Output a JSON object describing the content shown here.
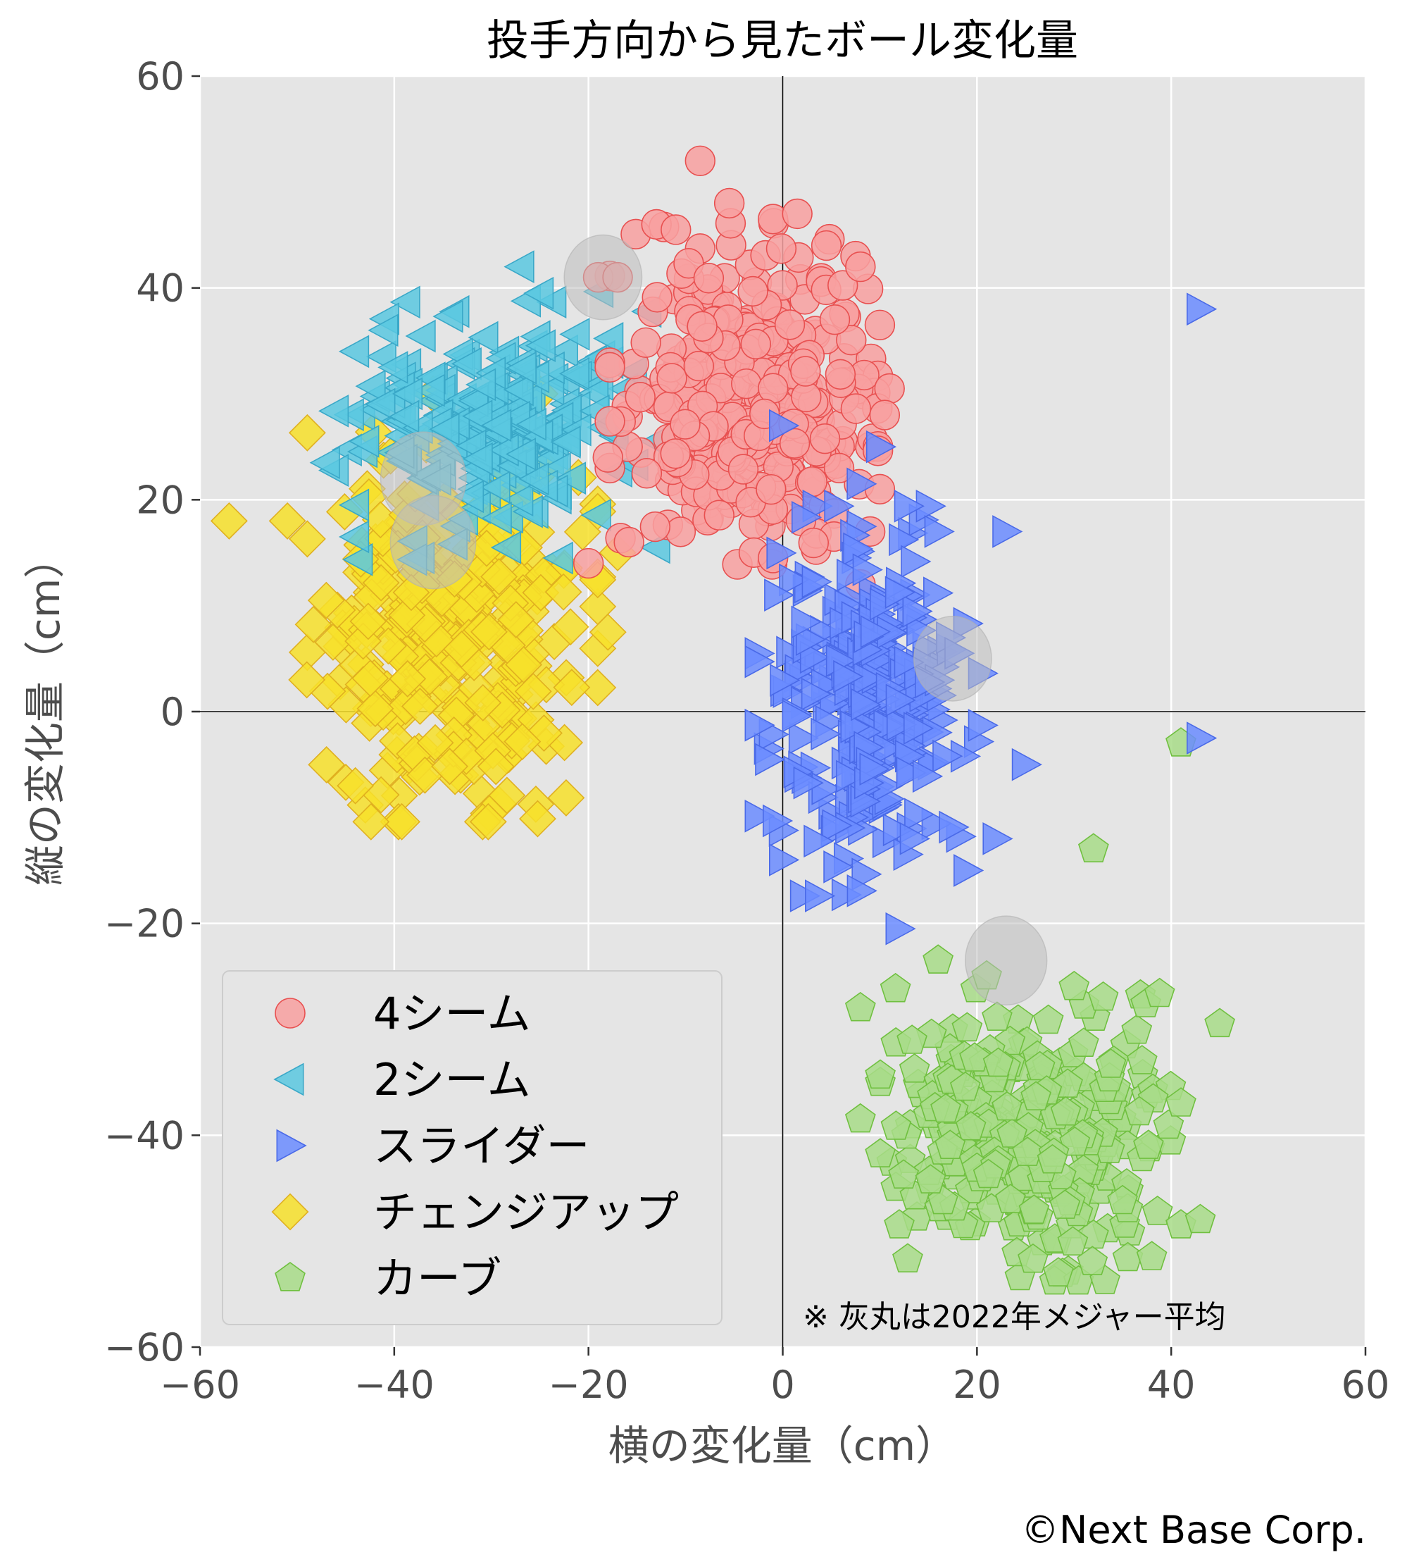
{
  "chart_data": {
    "type": "scatter",
    "title": "投手方向から見たボール変化量",
    "xlabel": "横の変化量（cm）",
    "ylabel": "縦の変化量（cm）",
    "xlim": [
      -60,
      60
    ],
    "ylim": [
      -60,
      60
    ],
    "xticks": [
      -60,
      -40,
      -20,
      0,
      20,
      40,
      60
    ],
    "yticks": [
      -60,
      -40,
      -20,
      0,
      20,
      40,
      60
    ],
    "xtick_labels": [
      "−60",
      "−40",
      "−20",
      "0",
      "20",
      "40",
      "60"
    ],
    "ytick_labels": [
      "−60",
      "−40",
      "−20",
      "0",
      "20",
      "40",
      "60"
    ],
    "grid": true,
    "reference_lines": {
      "x": 0,
      "y": 0
    },
    "legend_position": "lower-left",
    "note": "※ 灰丸は2022年メジャー平均",
    "credit": "©Next Base Corp.",
    "series": [
      {
        "name": "4シーム",
        "marker": "circle",
        "color": "#f8a0a0",
        "edge": "#e85050",
        "center": [
          -4,
          30
        ],
        "spread": [
          6,
          7
        ],
        "count": 360,
        "outliers": [
          [
            -8.5,
            52
          ],
          [
            -5.5,
            48
          ],
          [
            -1,
            46.5
          ],
          [
            1.5,
            47
          ],
          [
            4.5,
            44
          ],
          [
            -13,
            46
          ],
          [
            -11,
            45.5
          ],
          [
            7.5,
            43
          ],
          [
            8,
            42
          ],
          [
            10,
            36.5
          ],
          [
            11,
            30.5
          ],
          [
            10.5,
            28
          ],
          [
            10,
            21
          ],
          [
            9,
            17
          ],
          [
            8,
            12
          ],
          [
            -1,
            14.5
          ],
          [
            -20,
            14
          ],
          [
            -19,
            41
          ],
          [
            -17,
            41
          ],
          [
            -14,
            22.5
          ],
          [
            -18,
            24
          ]
        ]
      },
      {
        "name": "2シーム",
        "marker": "triangle-left",
        "color": "#5bc8e0",
        "edge": "#3aa8c8",
        "center": [
          -30,
          27
        ],
        "spread": [
          7,
          5.5
        ],
        "count": 230,
        "outliers": [
          [
            -27,
            42
          ],
          [
            -25,
            39.5
          ],
          [
            -41,
            36
          ],
          [
            -44,
            34
          ],
          [
            -40,
            32.5
          ],
          [
            -47,
            23.5
          ],
          [
            -44,
            19.5
          ],
          [
            -44,
            16.5
          ],
          [
            -23,
            14.5
          ],
          [
            -13,
            15.5
          ],
          [
            -13,
            25.5
          ]
        ]
      },
      {
        "name": "スライダー",
        "marker": "triangle-right",
        "color": "#6b8cff",
        "edge": "#4a6ae8",
        "center": [
          9,
          1
        ],
        "spread": [
          5,
          8
        ],
        "count": 280,
        "outliers": [
          [
            43,
            38
          ],
          [
            23,
            17
          ],
          [
            16,
            17
          ],
          [
            0,
            27
          ],
          [
            43,
            -2.5
          ],
          [
            25,
            -5
          ],
          [
            22,
            -12
          ],
          [
            19,
            -15
          ],
          [
            12,
            -20.5
          ],
          [
            0,
            -14
          ],
          [
            -0.5,
            11
          ],
          [
            8,
            21.5
          ],
          [
            10,
            25
          ]
        ]
      },
      {
        "name": "チェンジアップ",
        "marker": "diamond",
        "color": "#f7e02a",
        "edge": "#e0b020",
        "center": [
          -34,
          8
        ],
        "spread": [
          6.5,
          8
        ],
        "count": 330,
        "outliers": [
          [
            -57,
            18
          ],
          [
            -51,
            18
          ],
          [
            -44,
            -7
          ],
          [
            -17,
            15
          ],
          [
            -18,
            7.5
          ],
          [
            -49,
            3
          ],
          [
            -47,
            10.5
          ],
          [
            -25,
            30
          ],
          [
            -36,
            30
          ]
        ]
      },
      {
        "name": "カーブ",
        "marker": "pentagon",
        "color": "#a8dc88",
        "edge": "#70c040",
        "center": [
          25,
          -40
        ],
        "spread": [
          6.5,
          6
        ],
        "count": 300,
        "outliers": [
          [
            41,
            -3
          ],
          [
            32,
            -13
          ],
          [
            16,
            -23.5
          ],
          [
            21,
            -25
          ],
          [
            8,
            -28
          ],
          [
            30,
            -26
          ],
          [
            33,
            -27
          ],
          [
            45,
            -29.5
          ],
          [
            37,
            -33
          ],
          [
            41,
            -37
          ],
          [
            8,
            -38.5
          ],
          [
            12,
            -48.5
          ],
          [
            38,
            -51.5
          ],
          [
            41,
            -48.5
          ],
          [
            43,
            -48
          ]
        ]
      }
    ],
    "averages_2022_mlb": [
      {
        "x": -18.5,
        "y": 41,
        "r": 4
      },
      {
        "x": -37,
        "y": 22,
        "r": 4.4
      },
      {
        "x": -36,
        "y": 16,
        "r": 4.4
      },
      {
        "x": 17.5,
        "y": 5,
        "r": 4
      },
      {
        "x": 23,
        "y": -23.5,
        "r": 4.2
      }
    ]
  }
}
